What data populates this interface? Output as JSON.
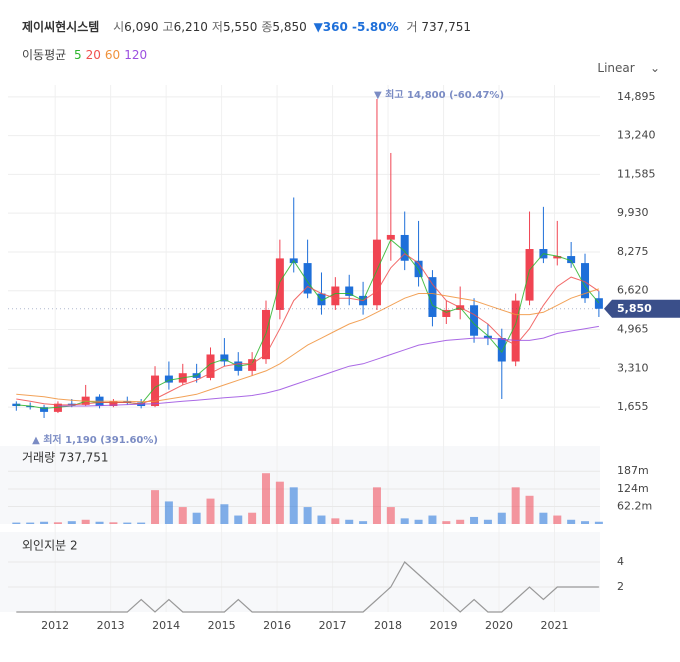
{
  "chart_data": {
    "type": "candlestick",
    "title": "제이씨현시스템",
    "header": [
      {
        "label": "시",
        "value": "6,090"
      },
      {
        "label": "고",
        "value": "6,210"
      },
      {
        "label": "저",
        "value": "5,550"
      },
      {
        "label": "종",
        "value": "5,850"
      }
    ],
    "change": "▼360 -5.80%",
    "volume_header": {
      "label": "거",
      "value": "737,751"
    },
    "ma_title": "이동평균",
    "mas": [
      {
        "name": "5",
        "color": "#2db52d",
        "values": [
          1750,
          1700,
          1600,
          1650,
          1700,
          1900,
          1850,
          1850,
          1850,
          1780,
          2500,
          2800,
          2900,
          3000,
          3500,
          3700,
          3400,
          3500,
          4800,
          7000,
          7900,
          7000,
          6200,
          6500,
          6500,
          6200,
          7500,
          8800,
          8300,
          7500,
          6000,
          5700,
          5900,
          5200,
          4700,
          4000,
          5200,
          7500,
          8200,
          8100,
          7900,
          6800,
          6100
        ]
      },
      {
        "name": "20",
        "color": "#f0504f",
        "values": [
          2000,
          1900,
          1800,
          1750,
          1750,
          1800,
          1850,
          1850,
          1850,
          1800,
          2000,
          2300,
          2600,
          2800,
          3100,
          3400,
          3500,
          3500,
          3900,
          5000,
          6200,
          6800,
          6500,
          6300,
          6300,
          6200,
          6600,
          7600,
          8200,
          7800,
          6900,
          6200,
          5900,
          5600,
          5200,
          4600,
          4300,
          5000,
          6000,
          6800,
          7200,
          7000,
          6600
        ]
      },
      {
        "name": "60",
        "color": "#f0923b",
        "values": [
          2200,
          2150,
          2100,
          2000,
          1950,
          1900,
          1900,
          1900,
          1900,
          1880,
          1900,
          2000,
          2100,
          2200,
          2400,
          2600,
          2800,
          3000,
          3200,
          3500,
          3900,
          4300,
          4600,
          4900,
          5200,
          5400,
          5700,
          6000,
          6300,
          6500,
          6500,
          6400,
          6300,
          6200,
          6000,
          5800,
          5600,
          5600,
          5700,
          6000,
          6300,
          6500,
          6700
        ]
      },
      {
        "name": "120",
        "color": "#9b4fe0",
        "values": [
          null,
          null,
          null,
          1700,
          1700,
          1700,
          1720,
          1740,
          1760,
          1780,
          1800,
          1850,
          1900,
          1950,
          2000,
          2050,
          2100,
          2150,
          2250,
          2400,
          2600,
          2800,
          3000,
          3200,
          3400,
          3500,
          3700,
          3900,
          4100,
          4300,
          4400,
          4500,
          4550,
          4600,
          4600,
          4550,
          4500,
          4500,
          4600,
          4800,
          4900,
          5000,
          5100
        ]
      }
    ],
    "scale": "Linear",
    "x": [
      2011.3,
      2011.55,
      2011.8,
      2012.05,
      2012.3,
      2012.55,
      2012.8,
      2013.05,
      2013.3,
      2013.55,
      2013.8,
      2014.05,
      2014.3,
      2014.55,
      2014.8,
      2015.05,
      2015.3,
      2015.55,
      2015.8,
      2016.05,
      2016.3,
      2016.55,
      2016.8,
      2017.05,
      2017.3,
      2017.55,
      2017.8,
      2018.05,
      2018.3,
      2018.55,
      2018.8,
      2019.05,
      2019.3,
      2019.55,
      2019.8,
      2020.05,
      2020.3,
      2020.55,
      2020.8,
      2021.05,
      2021.3,
      2021.55,
      2021.8
    ],
    "open": [
      1800,
      1700,
      1650,
      1450,
      1800,
      1750,
      2100,
      1700,
      1900,
      1850,
      1700,
      3000,
      2700,
      3100,
      2900,
      3900,
      3600,
      3200,
      3700,
      5800,
      8000,
      7800,
      6500,
      6000,
      6800,
      6400,
      6000,
      8800,
      9000,
      7900,
      7200,
      5500,
      5800,
      6000,
      4700,
      4600,
      3600,
      6200,
      8400,
      8000,
      8100,
      7800,
      6300
    ],
    "high": [
      1900,
      1850,
      1750,
      1900,
      2000,
      2600,
      2200,
      2000,
      2100,
      2000,
      3400,
      3600,
      3500,
      3500,
      4200,
      4600,
      4000,
      4000,
      6200,
      8800,
      10600,
      8800,
      7400,
      7200,
      7300,
      7000,
      14800,
      12500,
      10000,
      9600,
      7500,
      6200,
      6800,
      6300,
      5200,
      5000,
      6500,
      10000,
      10200,
      9600,
      8700,
      8200,
      6600
    ],
    "low": [
      1500,
      1550,
      1190,
      1400,
      1650,
      1700,
      1600,
      1650,
      1750,
      1600,
      1650,
      2400,
      2600,
      2700,
      2800,
      3400,
      3000,
      3000,
      3500,
      5400,
      7400,
      6300,
      5600,
      5800,
      6000,
      5600,
      5800,
      7900,
      7500,
      6800,
      5100,
      5200,
      5400,
      4400,
      4300,
      2000,
      3400,
      6000,
      7800,
      7700,
      7600,
      6100,
      5500
    ],
    "close": [
      1700,
      1650,
      1450,
      1800,
      1750,
      2100,
      1700,
      1900,
      1850,
      1700,
      3000,
      2700,
      3100,
      2900,
      3900,
      3600,
      3200,
      3700,
      5800,
      8000,
      7800,
      6500,
      6000,
      6800,
      6400,
      6000,
      8800,
      9000,
      7900,
      7200,
      5500,
      5800,
      6000,
      4700,
      4600,
      3600,
      6200,
      8400,
      8000,
      8100,
      7800,
      6300,
      5850
    ],
    "up_color": "#f04452",
    "down_color": "#1e6fd9",
    "high_label": "▼ 최고 14,800 (-60.47%)",
    "high_index": 26,
    "low_label": "▲ 최저 1,190 (391.60%)",
    "low_index": 2,
    "price_tag": "5,850",
    "xlim": [
      2011.15,
      2021.82
    ],
    "xticks": [
      2012,
      2013,
      2014,
      2015,
      2016,
      2017,
      2018,
      2019,
      2020,
      2021
    ],
    "ylim": [
      250,
      15400
    ],
    "yticks": [
      {
        "value": 1655,
        "label": "1,655"
      },
      {
        "value": 3310,
        "label": "3,310"
      },
      {
        "value": 4965,
        "label": "4,965"
      },
      {
        "value": 6620,
        "label": "6,620"
      },
      {
        "value": 8275,
        "label": "8,275"
      },
      {
        "value": 9930,
        "label": "9,930"
      },
      {
        "value": 11585,
        "label": "11,585"
      },
      {
        "value": 13240,
        "label": "13,240"
      },
      {
        "value": 14895,
        "label": "14,895"
      }
    ],
    "volume_title": "거래량 737,751",
    "volume": [
      5000000,
      5000000,
      8000000,
      6000000,
      10000000,
      15000000,
      8000000,
      6000000,
      5000000,
      5000000,
      120000000,
      80000000,
      60000000,
      40000000,
      90000000,
      70000000,
      30000000,
      40000000,
      180000000,
      150000000,
      130000000,
      60000000,
      30000000,
      20000000,
      15000000,
      10000000,
      130000000,
      60000000,
      20000000,
      15000000,
      30000000,
      10000000,
      15000000,
      25000000,
      15000000,
      40000000,
      130000000,
      100000000,
      40000000,
      30000000,
      15000000,
      10000000,
      8000000
    ],
    "vlim": [
      0,
      280000000
    ],
    "vticks": [
      {
        "value": 62200000,
        "label": "62.2m"
      },
      {
        "value": 124000000,
        "label": "124m"
      },
      {
        "value": 187000000,
        "label": "187m"
      }
    ],
    "foreign_title": "외인지분 2",
    "foreign": [
      0,
      0,
      0,
      0,
      0,
      0,
      0,
      0,
      0,
      1,
      0,
      1,
      0,
      0,
      0,
      0,
      1,
      0,
      0,
      0,
      0,
      0,
      0,
      0,
      0,
      0,
      1,
      2,
      4,
      3,
      2,
      1,
      0,
      1,
      0,
      0,
      1,
      2,
      1,
      2,
      2,
      2,
      2
    ],
    "foreign_color": "#999999",
    "flim": [
      0,
      6
    ],
    "fticks": [
      2,
      4
    ]
  }
}
